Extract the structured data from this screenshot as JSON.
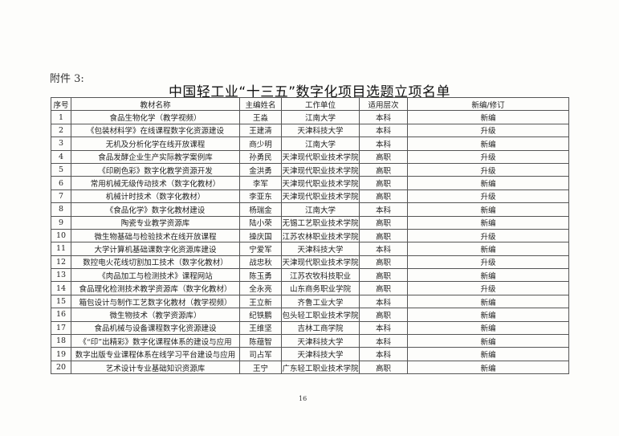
{
  "attachment_label": "附件 3:",
  "title": "中国轻工业“十三五”数字化项目选题立项名单",
  "table": {
    "headers": [
      "序号",
      "教材名称",
      "主编姓名",
      "工作单位",
      "适用层次",
      "新编/修订"
    ],
    "rows": [
      [
        "1",
        "食品生物化学（教学视频）",
        "王淼",
        "江南大学",
        "本科",
        "新编"
      ],
      [
        "2",
        "《包装材料学》在线课程数字化资源建设",
        "王建清",
        "天津科技大学",
        "本科",
        "升级"
      ],
      [
        "3",
        "无机及分析化学在线开放课程",
        "商少明",
        "江南大学",
        "本科",
        "新编"
      ],
      [
        "4",
        "食品发酵企业生产实际教学案例库",
        "孙勇民",
        "天津现代职业技术学院",
        "高职",
        "升级"
      ],
      [
        "5",
        "《印刷色彩》数字化教学资源开发",
        "金洪勇",
        "天津现代职业技术学院",
        "高职",
        "升级"
      ],
      [
        "6",
        "常用机械无级传动技术（数字化教材）",
        "李军",
        "天津现代职业技术学院",
        "高职",
        "新编"
      ],
      [
        "7",
        "机械计时技术（数字化教材）",
        "李亚东",
        "天津现代职业技术学院",
        "高职",
        "升级"
      ],
      [
        "8",
        "《食品化学》数字化教材建设",
        "杨瑞金",
        "江南大学",
        "本科",
        "新编"
      ],
      [
        "9",
        "陶瓷专业教学资源库",
        "陆小荣",
        "无锡工艺职业技术学院",
        "高职",
        "新编"
      ],
      [
        "10",
        "微生物基础与检验技术在线开放课程",
        "操庆国",
        "江苏农林职业技术学院",
        "高职",
        "升级"
      ],
      [
        "11",
        "大学计算机基础课数字化资源库建设",
        "宁爱军",
        "天津科技大学",
        "本科",
        "新编"
      ],
      [
        "12",
        "数控电火花线切割加工技术（数字化教材）",
        "战忠秋",
        "天津现代职业技术学院",
        "高职",
        "升级"
      ],
      [
        "13",
        "《肉品加工与检测技术》课程网站",
        "陈玉勇",
        "江苏农牧科技职业",
        "高职",
        "新编"
      ],
      [
        "14",
        "食品理化检测技术教学资源库（数字化教材）",
        "全永亮",
        "山东商务职业学院",
        "高职",
        "升级"
      ],
      [
        "15",
        "箱包设计与制作工艺数字化教材（教学视频）",
        "王立新",
        "齐鲁工业大学",
        "本科",
        "新编"
      ],
      [
        "16",
        "微生物技术（教学资源库）",
        "纪铁鹏",
        "包头轻工职业技术学院",
        "高职",
        "新编"
      ],
      [
        "17",
        "食品机械与设备课程数字化资源建设",
        "王维坚",
        "吉林工商学院",
        "本科",
        "新编"
      ],
      [
        "18",
        "《“印”出精彩》数字化课程体系的建设与应用",
        "陈蕴智",
        "天津科技大学",
        "本科",
        "新编"
      ],
      [
        "19",
        "数字出版专业课程体系在线学习平台建设与应用",
        "司占军",
        "天津科技大学",
        "本科",
        "新编"
      ],
      [
        "20",
        "艺术设计专业基础知识资源库",
        "王宁",
        "广东轻工职业技术学院",
        "高职",
        "新编"
      ]
    ]
  },
  "page_number": "16"
}
